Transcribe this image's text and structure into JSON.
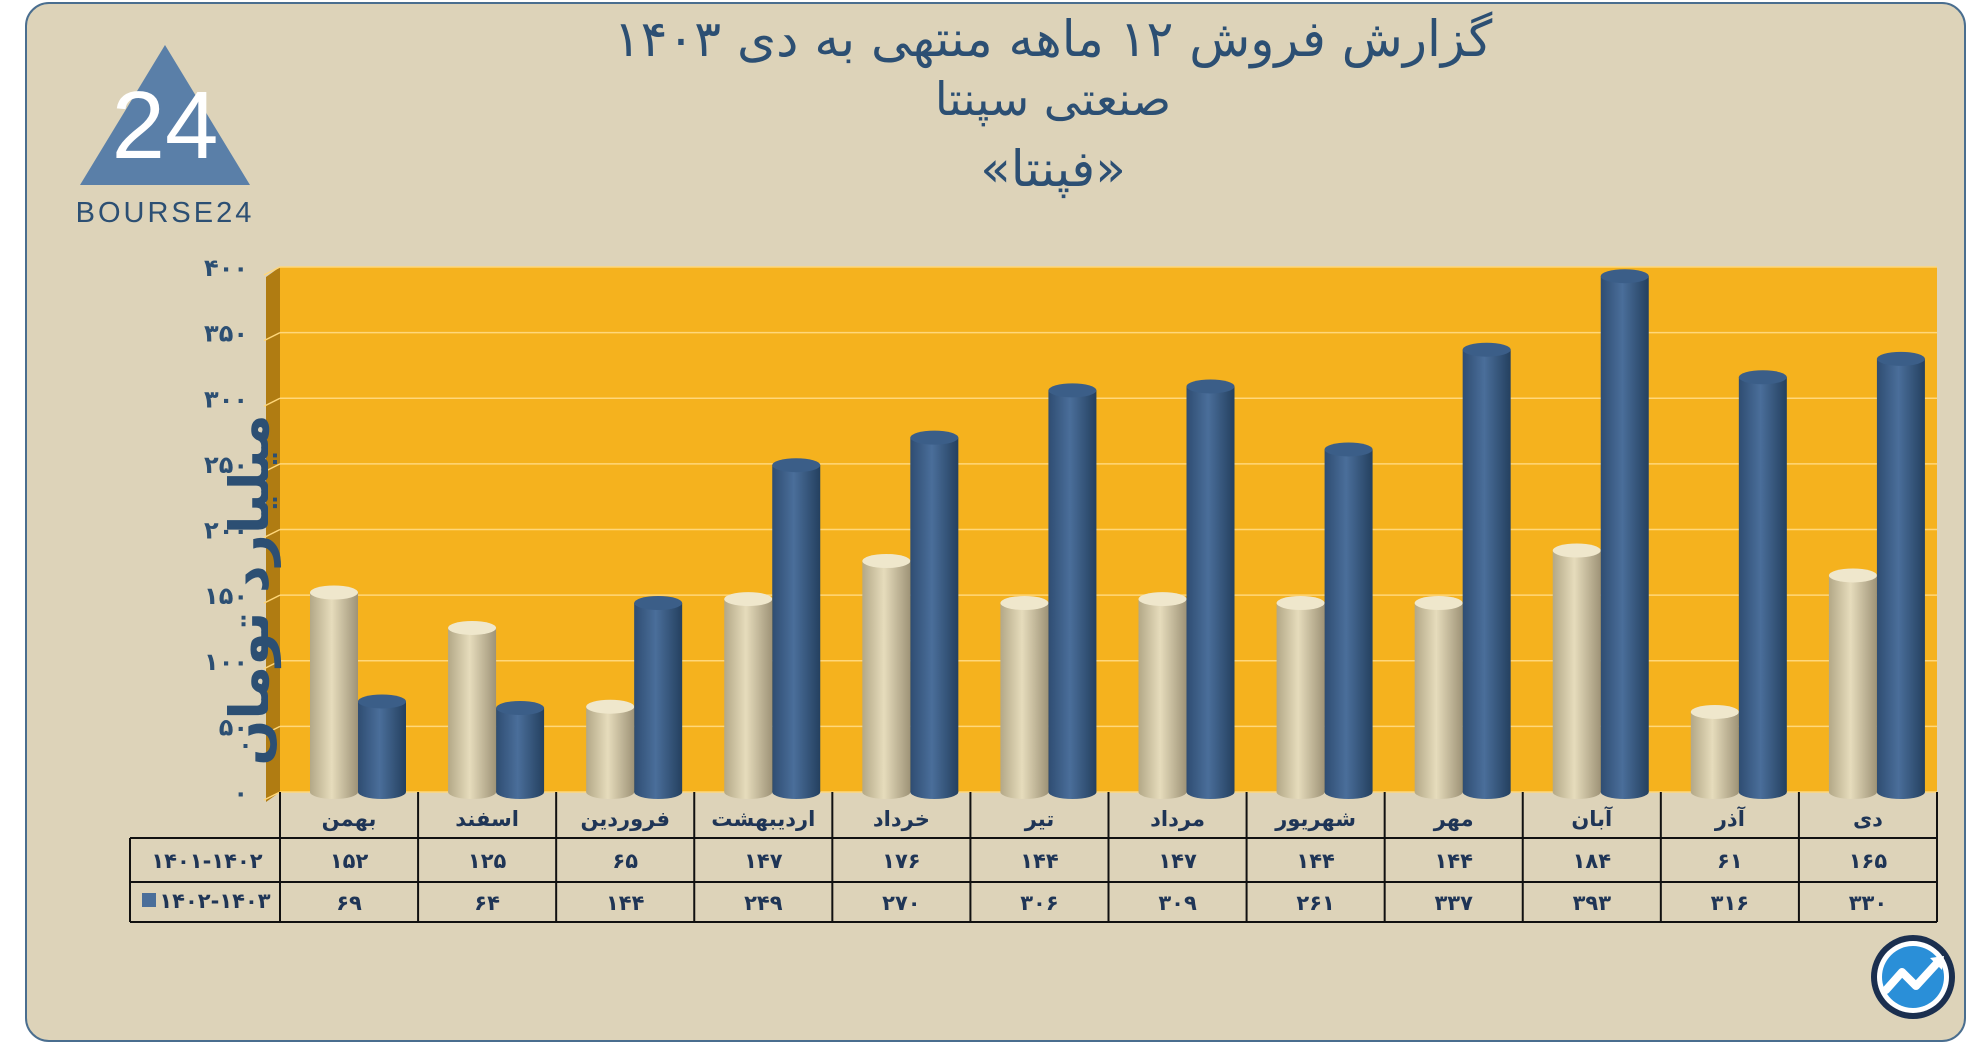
{
  "header": {
    "title_line1": "گزارش  فروش ۱۲ ماهه منتهی به دی ۱۴۰۳",
    "title_line2": "صنعتی سپنتا",
    "title_line3": "«فپنتا»"
  },
  "logo": {
    "text": "BOURSE24",
    "mark": "24"
  },
  "colors": {
    "background": "#ddd3b9",
    "plot_area": "#f5b21e",
    "series_1401_1402": "#e6dcbc",
    "series_1402_1403": "#4a6e9a",
    "text": "#2c4f73"
  },
  "chart_data": {
    "type": "bar",
    "ylabel": "میلیارد تومان",
    "ylim": [
      0,
      400
    ],
    "yticks": [
      "۰",
      "۵۰",
      "۱۰۰",
      "۱۵۰",
      "۲۰۰",
      "۲۵۰",
      "۳۰۰",
      "۳۵۰",
      "۴۰۰"
    ],
    "grid": true,
    "categories": [
      "بهمن",
      "اسفند",
      "فروردین",
      "اردیبهشت",
      "خرداد",
      "تیر",
      "مرداد",
      "شهریور",
      "مهر",
      "آبان",
      "آذر",
      "دی"
    ],
    "series": [
      {
        "name": "۱۴۰۱-۱۴۰۲",
        "values": [
          152,
          125,
          65,
          147,
          176,
          144,
          147,
          144,
          144,
          184,
          61,
          165
        ],
        "labels": [
          "۱۵۲",
          "۱۲۵",
          "۶۵",
          "۱۴۷",
          "۱۷۶",
          "۱۴۴",
          "۱۴۷",
          "۱۴۴",
          "۱۴۴",
          "۱۸۴",
          "۶۱",
          "۱۶۵"
        ]
      },
      {
        "name": "۱۴۰۲-۱۴۰۳",
        "values": [
          69,
          64,
          144,
          249,
          270,
          306,
          309,
          261,
          337,
          393,
          316,
          330
        ],
        "labels": [
          "۶۹",
          "۶۴",
          "۱۴۴",
          "۲۴۹",
          "۲۷۰",
          "۳۰۶",
          "۳۰۹",
          "۲۶۱",
          "۳۳۷",
          "۳۹۳",
          "۳۱۶",
          "۳۳۰"
        ]
      }
    ]
  }
}
